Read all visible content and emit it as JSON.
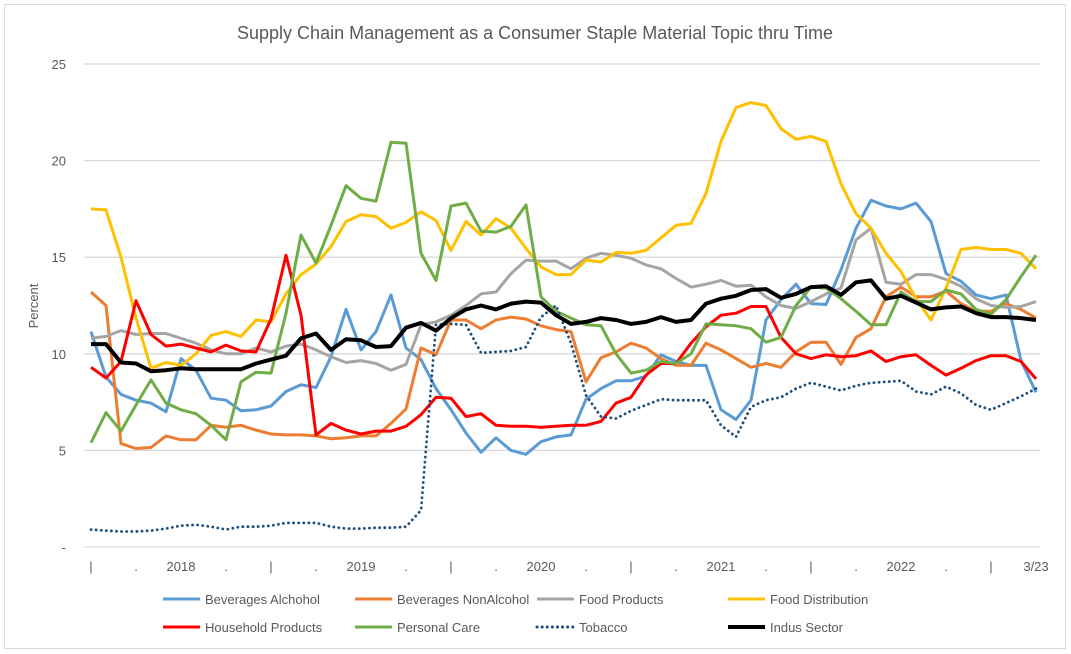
{
  "chart_data": {
    "type": "line",
    "title": "Supply Chain Management as a Consumer Staple Material Topic thru Time",
    "ylabel": "Percent",
    "xlabel": "",
    "ylim": [
      0,
      25
    ],
    "yticks": [
      0,
      5,
      10,
      15,
      20,
      25
    ],
    "ytick_labels": [
      "-",
      "5",
      "10",
      "15",
      "20",
      "25"
    ],
    "x_tick_labels": [
      "|",
      ".",
      "2018",
      ".",
      "|",
      ".",
      "2019",
      ".",
      "|",
      ".",
      "2020",
      ".",
      "|",
      ".",
      "2021",
      ".",
      "|",
      ".",
      "2022",
      ".",
      "|",
      "3/23"
    ],
    "x_tick_every": 3,
    "grid": true,
    "legend_position": "bottom",
    "series": [
      {
        "name": "Beverages Alchohol",
        "color": "#5b9bd5",
        "dash": "solid",
        "values": [
          11.15,
          8.8,
          7.9,
          7.6,
          7.45,
          7.0,
          9.75,
          9.15,
          7.7,
          7.6,
          7.05,
          7.1,
          7.3,
          8.05,
          8.4,
          8.25,
          9.85,
          12.3,
          10.2,
          11.15,
          13.05,
          10.3,
          9.7,
          8.2,
          7.1,
          5.9,
          4.9,
          5.65,
          5.0,
          4.8,
          5.45,
          5.7,
          5.8,
          7.65,
          8.2,
          8.6,
          8.6,
          8.85,
          9.95,
          9.6,
          9.4,
          9.4,
          7.1,
          6.6,
          7.6,
          11.75,
          12.8,
          13.6,
          12.6,
          12.55,
          14.35,
          16.5,
          17.95,
          17.65,
          17.5,
          17.8,
          16.85,
          14.15,
          13.75,
          13.05,
          12.85,
          13.05,
          9.65,
          8.0
        ]
      },
      {
        "name": "Beverages NonAlcohol",
        "color": "#ed7d31",
        "dash": "solid",
        "values": [
          13.2,
          12.5,
          5.35,
          5.1,
          5.15,
          5.75,
          5.55,
          5.55,
          6.3,
          6.2,
          6.3,
          6.05,
          5.85,
          5.8,
          5.8,
          5.75,
          5.6,
          5.65,
          5.75,
          5.75,
          6.4,
          7.15,
          10.3,
          9.95,
          11.75,
          11.75,
          11.3,
          11.75,
          11.9,
          11.8,
          11.45,
          11.25,
          11.15,
          8.55,
          9.8,
          10.1,
          10.55,
          10.3,
          9.75,
          9.4,
          9.4,
          10.55,
          10.2,
          9.75,
          9.3,
          9.5,
          9.3,
          10.1,
          10.6,
          10.6,
          9.45,
          10.85,
          11.3,
          12.95,
          13.45,
          12.95,
          12.95,
          13.25,
          12.6,
          12.2,
          12.2,
          12.6,
          12.3,
          11.85
        ]
      },
      {
        "name": "Food Products",
        "color": "#a5a5a5",
        "dash": "solid",
        "values": [
          10.8,
          10.9,
          11.2,
          11.0,
          11.05,
          11.05,
          10.8,
          10.55,
          10.2,
          10.0,
          10.0,
          10.3,
          10.1,
          10.4,
          10.5,
          10.2,
          9.85,
          9.55,
          9.65,
          9.5,
          9.15,
          9.45,
          11.5,
          11.65,
          12.0,
          12.5,
          13.1,
          13.2,
          14.15,
          14.85,
          14.8,
          14.8,
          14.4,
          14.95,
          15.2,
          15.1,
          14.95,
          14.6,
          14.4,
          13.9,
          13.45,
          13.6,
          13.8,
          13.5,
          13.55,
          12.95,
          12.5,
          12.35,
          12.7,
          13.1,
          13.4,
          15.9,
          16.5,
          13.7,
          13.6,
          14.1,
          14.1,
          13.85,
          13.5,
          12.85,
          12.5,
          12.4,
          12.45,
          12.7
        ]
      },
      {
        "name": "Food Distribution",
        "color": "#ffc000",
        "dash": "solid",
        "values": [
          17.5,
          17.45,
          15.0,
          11.85,
          9.25,
          9.55,
          9.4,
          10.0,
          10.95,
          11.15,
          10.9,
          11.75,
          11.65,
          13.1,
          14.1,
          14.65,
          15.55,
          16.85,
          17.2,
          17.1,
          16.5,
          16.8,
          17.35,
          16.9,
          15.35,
          16.85,
          16.15,
          17.0,
          16.5,
          15.45,
          14.5,
          14.1,
          14.1,
          14.85,
          14.75,
          15.25,
          15.2,
          15.35,
          16.0,
          16.65,
          16.75,
          18.3,
          21.0,
          22.75,
          23.0,
          22.85,
          21.65,
          21.1,
          21.25,
          21.0,
          18.8,
          17.25,
          16.5,
          15.2,
          14.25,
          12.85,
          11.75,
          13.4,
          15.4,
          15.5,
          15.4,
          15.4,
          15.2,
          14.4
        ]
      },
      {
        "name": "Household Products",
        "color": "#ff0000",
        "dash": "solid",
        "values": [
          9.3,
          8.75,
          9.6,
          12.75,
          11.0,
          10.4,
          10.5,
          10.3,
          10.1,
          10.45,
          10.15,
          10.1,
          11.8,
          15.1,
          12.0,
          5.8,
          6.4,
          6.05,
          5.85,
          6.0,
          6.0,
          6.25,
          6.85,
          7.75,
          7.7,
          6.75,
          6.9,
          6.3,
          6.25,
          6.25,
          6.2,
          6.25,
          6.3,
          6.3,
          6.5,
          7.45,
          7.75,
          8.9,
          9.5,
          9.5,
          10.55,
          11.4,
          12.0,
          12.1,
          12.45,
          12.45,
          10.85,
          10.0,
          9.75,
          9.95,
          9.85,
          9.9,
          10.15,
          9.6,
          9.85,
          9.95,
          9.4,
          8.9,
          9.25,
          9.65,
          9.9,
          9.9,
          9.6,
          8.7
        ]
      },
      {
        "name": "Personal Care",
        "color": "#70ad47",
        "dash": "solid",
        "values": [
          5.4,
          6.95,
          6.0,
          7.35,
          8.65,
          7.45,
          7.1,
          6.9,
          6.3,
          5.55,
          8.55,
          9.05,
          9.0,
          12.1,
          16.15,
          14.7,
          16.65,
          18.7,
          18.05,
          17.9,
          20.95,
          20.9,
          15.2,
          13.8,
          17.65,
          17.8,
          16.35,
          16.3,
          16.6,
          17.7,
          12.95,
          12.2,
          11.85,
          11.5,
          11.45,
          10.0,
          9.0,
          9.15,
          9.6,
          9.5,
          10.0,
          11.55,
          11.5,
          11.45,
          11.3,
          10.6,
          10.85,
          12.5,
          13.45,
          13.4,
          12.85,
          12.2,
          11.5,
          11.5,
          13.2,
          12.7,
          12.7,
          13.3,
          13.1,
          12.3,
          12.05,
          12.8,
          14.0,
          15.1
        ]
      },
      {
        "name": "Tobacco",
        "color": "#1f4e79",
        "dash": "dotted",
        "values": [
          0.9,
          0.85,
          0.8,
          0.8,
          0.85,
          0.95,
          1.1,
          1.15,
          1.05,
          0.9,
          1.05,
          1.05,
          1.1,
          1.25,
          1.25,
          1.25,
          1.05,
          0.95,
          0.95,
          1.0,
          1.0,
          1.05,
          1.9,
          11.5,
          11.55,
          11.5,
          10.05,
          10.1,
          10.15,
          10.35,
          11.9,
          12.5,
          10.55,
          7.85,
          6.75,
          6.65,
          7.05,
          7.35,
          7.65,
          7.6,
          7.6,
          7.6,
          6.3,
          5.7,
          7.25,
          7.6,
          7.75,
          8.2,
          8.5,
          8.3,
          8.1,
          8.35,
          8.5,
          8.55,
          8.6,
          8.05,
          7.9,
          8.3,
          7.95,
          7.35,
          7.1,
          7.45,
          7.8,
          8.2
        ]
      },
      {
        "name": "Indus Sector",
        "color": "#000000",
        "dash": "solid-bold",
        "values": [
          10.5,
          10.5,
          9.55,
          9.5,
          9.1,
          9.15,
          9.25,
          9.2,
          9.2,
          9.2,
          9.2,
          9.5,
          9.7,
          9.9,
          10.8,
          11.05,
          10.2,
          10.75,
          10.7,
          10.35,
          10.4,
          11.35,
          11.6,
          11.2,
          11.85,
          12.3,
          12.5,
          12.3,
          12.6,
          12.7,
          12.65,
          12.0,
          11.55,
          11.65,
          11.85,
          11.75,
          11.55,
          11.65,
          11.9,
          11.65,
          11.75,
          12.6,
          12.85,
          13.0,
          13.3,
          13.35,
          12.9,
          13.1,
          13.45,
          13.5,
          13.05,
          13.7,
          13.8,
          12.85,
          13.0,
          12.65,
          12.3,
          12.4,
          12.45,
          12.1,
          11.9,
          11.9,
          11.85,
          11.75
        ]
      }
    ]
  }
}
